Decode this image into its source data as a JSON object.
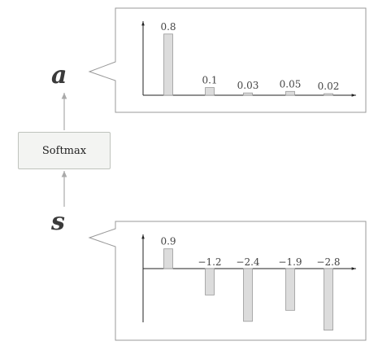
{
  "diagram": {
    "output_label": "a",
    "input_label": "s",
    "operation": "Softmax"
  },
  "chart_data": [
    {
      "type": "bar",
      "categories": [
        "",
        "",
        "",
        "",
        ""
      ],
      "values": [
        0.8,
        0.1,
        0.03,
        0.05,
        0.02
      ],
      "value_labels": [
        "0.8",
        "0.1",
        "0.03",
        "0.05",
        "0.02"
      ],
      "ylim": [
        0,
        1
      ],
      "title": "",
      "xlabel": "",
      "ylabel": "",
      "grid": false
    },
    {
      "type": "bar",
      "categories": [
        "",
        "",
        "",
        "",
        ""
      ],
      "values": [
        0.9,
        -1.2,
        -2.4,
        -1.9,
        -2.8
      ],
      "value_labels": [
        "0.9",
        "−1.2",
        "−2.4",
        "−1.9",
        "−2.8"
      ],
      "ylim": [
        -3.2,
        1.6
      ],
      "title": "",
      "xlabel": "",
      "ylabel": "",
      "grid": false
    }
  ],
  "colors": {
    "bar_fill": "#dcdcdc",
    "bar_stroke": "#9a9a9a",
    "panel_border": "#999999",
    "arrow": "#aaaaaa"
  }
}
